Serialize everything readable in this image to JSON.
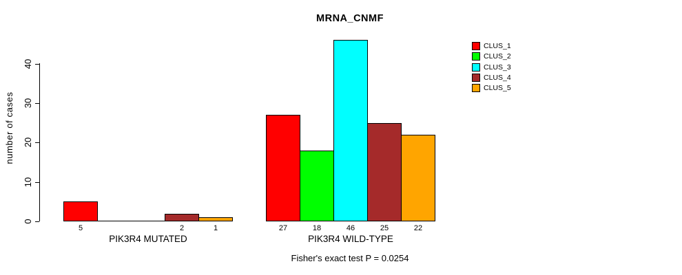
{
  "title": "MRNA_CNMF",
  "y_axis": {
    "label": "number of cases",
    "ticks": [
      0,
      10,
      20,
      30,
      40
    ]
  },
  "annotation": "Fisher's exact test P = 0.0254",
  "chart_data": {
    "type": "bar",
    "grouped": true,
    "title": "MRNA_CNMF",
    "ylabel": "number of cases",
    "xlabel": "",
    "ylim": [
      0,
      46
    ],
    "y_ticks": [
      0,
      10,
      20,
      30,
      40
    ],
    "grid": false,
    "legend_position": "right",
    "categories": [
      "PIK3R4 MUTATED",
      "PIK3R4 WILD-TYPE"
    ],
    "series": [
      {
        "name": "CLUS_1",
        "color": "#FF0000",
        "values": [
          5,
          27
        ]
      },
      {
        "name": "CLUS_2",
        "color": "#00FF00",
        "values": [
          0,
          18
        ]
      },
      {
        "name": "CLUS_3",
        "color": "#00FFFF",
        "values": [
          0,
          46
        ]
      },
      {
        "name": "CLUS_4",
        "color": "#A52A2A",
        "values": [
          2,
          25
        ]
      },
      {
        "name": "CLUS_5",
        "color": "#FFA500",
        "values": [
          1,
          22
        ]
      }
    ],
    "bar_value_labels_shown_for_nonzero_only": true,
    "annotation": "Fisher's exact test P = 0.0254"
  }
}
